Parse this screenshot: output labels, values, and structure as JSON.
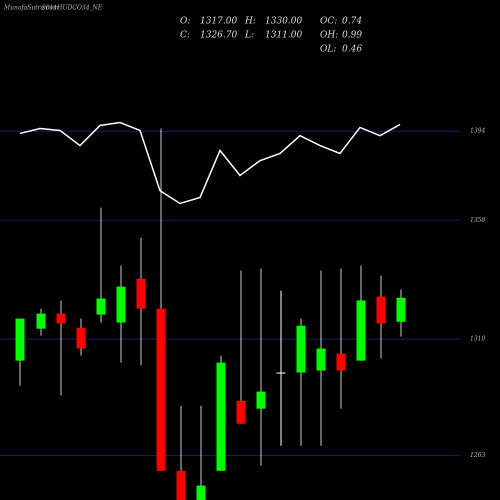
{
  "chart_data": {
    "type": "candlestick",
    "site": "MunafaSutra.com",
    "title": "9011HUDCO34_NE",
    "info": [
      [
        {
          "label": "O:",
          "value": "1317.00"
        },
        {
          "label": "H:",
          "value": "1330.00"
        },
        {
          "label": "OC:",
          "value": "0.74"
        }
      ],
      [
        {
          "label": "C:",
          "value": "1326.70"
        },
        {
          "label": "L:",
          "value": "1311.00"
        },
        {
          "label": "OH:",
          "value": "0.99"
        }
      ],
      [
        {
          "label": "OL:",
          "value": "0.46"
        }
      ]
    ],
    "up_color": "#00ff00",
    "down_color": "#ff0000",
    "line_color": "#ffffff",
    "grid_color": "#1a1a6e",
    "ylim": [
      1245,
      1447
    ],
    "yticks": [
      1394,
      1358,
      1310,
      1263
    ],
    "open": [
      1301.3,
      1314.2,
      1320.3,
      1314.6,
      1319.9,
      1316.7,
      1334.4,
      1322.3,
      1256.8,
      1244,
      1256.8,
      1285.1,
      1281.9,
      1296.5,
      1296.5,
      1297.3,
      1304.1,
      1301.3,
      1327.2,
      1317
    ],
    "high": [
      1318.3,
      1322.3,
      1325.6,
      1318.3,
      1363.1,
      1339.7,
      1351.0,
      1395.1,
      1283.1,
      1283.1,
      1303.3,
      1337.7,
      1338.5,
      1329.6,
      1318.3,
      1337.7,
      1338.5,
      1339.7,
      1335.7,
      1330
    ],
    "low": [
      1291.2,
      1311.4,
      1287.2,
      1303.3,
      1316.7,
      1300.5,
      1299.3,
      1256.8,
      1244,
      1244,
      1256.8,
      1275.8,
      1258.9,
      1266.9,
      1266.9,
      1266.9,
      1281.9,
      1301.3,
      1302.1,
      1311
    ],
    "close": [
      1318.3,
      1320.3,
      1316.3,
      1306.2,
      1326.4,
      1331.2,
      1322.3,
      1256.8,
      1244,
      1250.8,
      1300.5,
      1275.8,
      1288.8,
      1296.5,
      1315.4,
      1306.2,
      1297.3,
      1325.6,
      1316.3,
      1326.7
    ],
    "line": [
      1393.1,
      1395.1,
      1394.3,
      1388.2,
      1396.3,
      1397.5,
      1394.3,
      1370.0,
      1364.8,
      1367.2,
      1386.2,
      1376.1,
      1382.1,
      1385.0,
      1392.2,
      1388.2,
      1385.0,
      1395.5,
      1392.2,
      1396.7
    ]
  }
}
